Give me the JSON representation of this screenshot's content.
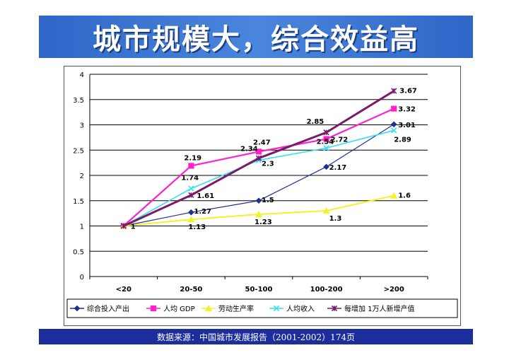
{
  "header": {
    "title": "城市规模大，综合效益高"
  },
  "footer": {
    "source": "数据来源：中国城市发展报告（2001-2002）174页"
  },
  "chart_data": {
    "type": "line",
    "categories": [
      "<20",
      "20-50",
      "50-100",
      "100-200",
      ">200"
    ],
    "ylim": [
      0,
      4
    ],
    "yticks": [
      "0",
      "0.5",
      "1",
      "1.5",
      "2",
      "2.5",
      "3",
      "3.5",
      "4"
    ],
    "grid": true,
    "legend": "bottom",
    "series": [
      {
        "name": "综合投入产出",
        "color": "#1f2f8f",
        "marker": "diamond",
        "values": [
          1,
          1.27,
          1.5,
          2.17,
          3.01
        ],
        "labels": [
          "",
          "1.27",
          "1.5",
          "2.17",
          "3.01"
        ]
      },
      {
        "name": "人均 GDP",
        "color": "#ff22cc",
        "marker": "square",
        "values": [
          1,
          2.19,
          2.47,
          2.72,
          3.32
        ],
        "labels": [
          "",
          "2.19",
          "2.47",
          "2.72",
          "3.32"
        ]
      },
      {
        "name": "劳动生产率",
        "color": "#f2f22a",
        "marker": "triangle",
        "values": [
          1,
          1.13,
          1.23,
          1.3,
          1.6
        ],
        "labels": [
          "",
          "1.13",
          "1.23",
          "1.3",
          "1.6"
        ]
      },
      {
        "name": "人均收入",
        "color": "#33e0f0",
        "marker": "x",
        "values": [
          1,
          1.74,
          2.3,
          2.54,
          2.89
        ],
        "labels": [
          "",
          "1.74",
          "2.3",
          "2.54",
          "2.89"
        ]
      },
      {
        "name": "每增加 1万人新增产值",
        "color": "#7a1a6a",
        "marker": "star",
        "values": [
          1,
          1.61,
          2.34,
          2.85,
          3.67
        ],
        "labels": [
          "1",
          "1.61",
          "2.34",
          "2.85",
          "3.67"
        ]
      }
    ]
  }
}
